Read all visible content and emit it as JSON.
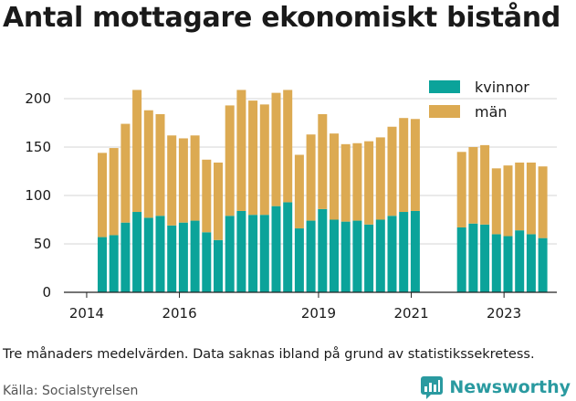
{
  "title": "Antal mottagare ekonomiskt bistånd",
  "caption": "Tre månaders medelvärden. Data saknas ibland på grund av statistikssekretess.",
  "source": "Källa: Socialstyrelsen",
  "brand": {
    "name": "Newsworthy",
    "icon": "bar-chart-logo-icon",
    "color": "#2a9aa0"
  },
  "colors": {
    "kvinnor": "#0ba39a",
    "man": "#dcaa52"
  },
  "chart_data": {
    "type": "bar",
    "stacked": true,
    "title": "Antal mottagare ekonomiskt bistånd",
    "xlabel": "",
    "ylabel": "",
    "ylim": [
      0,
      220
    ],
    "yticks": [
      0,
      50,
      100,
      150,
      200
    ],
    "xticks": [
      "2014",
      "2016",
      "2019",
      "2021",
      "2023"
    ],
    "grid": true,
    "legend": "top-right",
    "x": [
      "2014-Q2",
      "2014-Q3",
      "2014-Q4",
      "2015-Q1",
      "2015-Q2",
      "2015-Q3",
      "2015-Q4",
      "2016-Q1",
      "2016-Q2",
      "2016-Q3",
      "2016-Q4",
      "2017-Q1",
      "2017-Q2",
      "2017-Q3",
      "2017-Q4",
      "2018-Q1",
      "2018-Q2",
      "2018-Q3",
      "2018-Q4",
      "2019-Q1",
      "2019-Q2",
      "2019-Q3",
      "2019-Q4",
      "2020-Q1",
      "2020-Q2",
      "2020-Q3",
      "2020-Q4",
      "2021-Q1",
      "2021-Q2",
      "2021-Q3",
      "2021-Q4",
      "2022-Q1",
      "2022-Q2",
      "2022-Q3",
      "2022-Q4",
      "2023-Q1",
      "2023-Q2",
      "2023-Q3",
      "2023-Q4"
    ],
    "series": [
      {
        "name": "kvinnor",
        "values": [
          57,
          59,
          72,
          83,
          77,
          79,
          69,
          72,
          74,
          62,
          54,
          79,
          84,
          80,
          80,
          89,
          93,
          66,
          74,
          86,
          75,
          73,
          74,
          70,
          75,
          79,
          83,
          84,
          null,
          null,
          null,
          67,
          71,
          70,
          60,
          58,
          64,
          60,
          56
        ]
      },
      {
        "name": "män",
        "values": [
          87,
          90,
          102,
          126,
          111,
          105,
          93,
          87,
          88,
          75,
          80,
          114,
          125,
          118,
          114,
          117,
          116,
          76,
          89,
          98,
          89,
          80,
          80,
          86,
          85,
          92,
          97,
          95,
          null,
          null,
          null,
          78,
          79,
          82,
          68,
          73,
          70,
          74,
          74
        ]
      }
    ]
  }
}
